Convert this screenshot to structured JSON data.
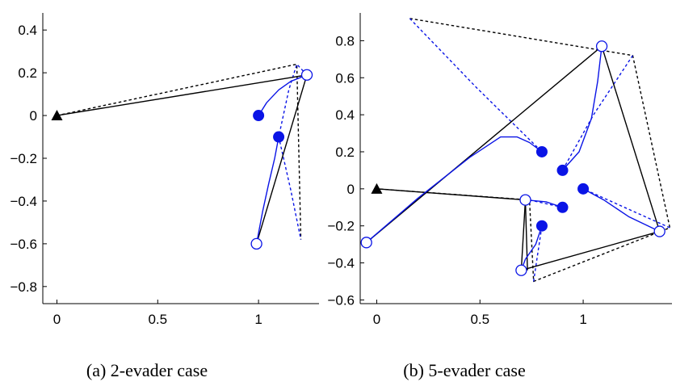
{
  "chart_data": [
    {
      "type": "scatter",
      "caption": "(a)  2-evader case",
      "xlim": [
        -0.07,
        1.3
      ],
      "ylim": [
        -0.88,
        0.48
      ],
      "xticks": [
        0,
        0.5,
        1
      ],
      "xtick_labels": [
        "0",
        "0.5",
        "1"
      ],
      "yticks": [
        0.4,
        0.2,
        0,
        -0.2,
        -0.4,
        -0.6,
        -0.8
      ],
      "ytick_labels": [
        "0.4",
        "0.2",
        "0",
        "−0.2",
        "−0.4",
        "−0.6",
        "−0.8"
      ],
      "pursuer": {
        "x": 0,
        "y": 0
      },
      "evaders_initial": [
        {
          "x": 1,
          "y": 0
        },
        {
          "x": 1.1,
          "y": -0.1
        }
      ],
      "evaders_final": [
        {
          "x": 1.24,
          "y": 0.19
        },
        {
          "x": 0.99,
          "y": -0.6
        }
      ],
      "black_solid": [
        [
          [
            0,
            0
          ],
          [
            1.24,
            0.19
          ],
          [
            0.99,
            -0.6
          ]
        ]
      ],
      "black_dashed": [
        [
          [
            0,
            0
          ],
          [
            1.19,
            0.24
          ],
          [
            1.21,
            -0.58
          ]
        ]
      ],
      "blue_solid": [
        [
          [
            1,
            0
          ],
          [
            1.04,
            0.06
          ],
          [
            1.1,
            0.12
          ],
          [
            1.16,
            0.16
          ],
          [
            1.24,
            0.19
          ]
        ],
        [
          [
            1.1,
            -0.1
          ],
          [
            1.08,
            -0.2
          ],
          [
            1.05,
            -0.32
          ],
          [
            1.02,
            -0.45
          ],
          [
            0.99,
            -0.6
          ]
        ]
      ],
      "blue_dashed": [
        [
          [
            1.24,
            0.19
          ],
          [
            1.19,
            0.24
          ],
          [
            1.15,
            0.12
          ],
          [
            1.1,
            -0.1
          ],
          [
            1.16,
            -0.35
          ],
          [
            1.21,
            -0.58
          ]
        ]
      ]
    },
    {
      "type": "scatter",
      "caption": "(b)  5-evader case",
      "xlim": [
        -0.08,
        1.43
      ],
      "ylim": [
        -0.62,
        0.95
      ],
      "xticks": [
        0,
        0.5,
        1
      ],
      "xtick_labels": [
        "0",
        "0.5",
        "1"
      ],
      "yticks": [
        0.8,
        0.6,
        0.4,
        0.2,
        0,
        -0.2,
        -0.4,
        -0.6
      ],
      "ytick_labels": [
        "0.8",
        "0.6",
        "0.4",
        "0.2",
        "0",
        "−0.2",
        "−0.4",
        "−0.6"
      ],
      "pursuer": {
        "x": 0,
        "y": 0
      },
      "evaders_initial": [
        {
          "x": 0.8,
          "y": 0.2
        },
        {
          "x": 0.9,
          "y": 0.1
        },
        {
          "x": 1.0,
          "y": 0.0
        },
        {
          "x": 0.9,
          "y": -0.1
        },
        {
          "x": 0.8,
          "y": -0.2
        }
      ],
      "evaders_final": [
        {
          "x": 1.09,
          "y": 0.77
        },
        {
          "x": 1.37,
          "y": -0.23
        },
        {
          "x": 0.72,
          "y": -0.06
        },
        {
          "x": 0.7,
          "y": -0.44
        },
        {
          "x": -0.05,
          "y": -0.29
        }
      ],
      "black_solid": [
        [
          [
            0,
            0
          ],
          [
            0.72,
            -0.06
          ],
          [
            0.7,
            -0.44
          ],
          [
            1.37,
            -0.23
          ],
          [
            1.09,
            0.77
          ],
          [
            -0.05,
            -0.29
          ]
        ],
        [
          [
            0.72,
            -0.06
          ],
          [
            0.73,
            -0.44
          ]
        ]
      ],
      "black_dashed": [
        [
          [
            0.16,
            0.92
          ],
          [
            1.24,
            0.72
          ],
          [
            1.42,
            -0.21
          ],
          [
            0.76,
            -0.5
          ],
          [
            0.74,
            -0.06
          ],
          [
            0,
            0
          ]
        ]
      ],
      "blue_solid": [
        [
          [
            -0.05,
            -0.29
          ],
          [
            0.2,
            -0.05
          ],
          [
            0.45,
            0.17
          ],
          [
            0.6,
            0.28
          ],
          [
            0.68,
            0.28
          ],
          [
            0.74,
            0.25
          ],
          [
            0.8,
            0.2
          ]
        ],
        [
          [
            0.9,
            0.1
          ],
          [
            0.98,
            0.2
          ],
          [
            1.04,
            0.38
          ],
          [
            1.07,
            0.58
          ],
          [
            1.09,
            0.77
          ]
        ],
        [
          [
            1.0,
            0.0
          ],
          [
            1.1,
            -0.06
          ],
          [
            1.22,
            -0.15
          ],
          [
            1.37,
            -0.23
          ]
        ],
        [
          [
            0.9,
            -0.1
          ],
          [
            0.82,
            -0.07
          ],
          [
            0.72,
            -0.06
          ]
        ],
        [
          [
            0.8,
            -0.2
          ],
          [
            0.77,
            -0.3
          ],
          [
            0.72,
            -0.38
          ],
          [
            0.7,
            -0.44
          ]
        ]
      ],
      "blue_dashed": [
        [
          [
            0.16,
            0.92
          ],
          [
            0.48,
            0.55
          ],
          [
            0.8,
            0.2
          ]
        ],
        [
          [
            1.24,
            0.72
          ],
          [
            1.05,
            0.4
          ],
          [
            0.9,
            0.1
          ]
        ],
        [
          [
            1.42,
            -0.21
          ],
          [
            1.2,
            -0.1
          ],
          [
            1.0,
            0.0
          ]
        ],
        [
          [
            0.74,
            -0.06
          ],
          [
            0.9,
            -0.1
          ]
        ],
        [
          [
            0.76,
            -0.5
          ],
          [
            0.78,
            -0.35
          ],
          [
            0.8,
            -0.2
          ]
        ]
      ]
    }
  ]
}
